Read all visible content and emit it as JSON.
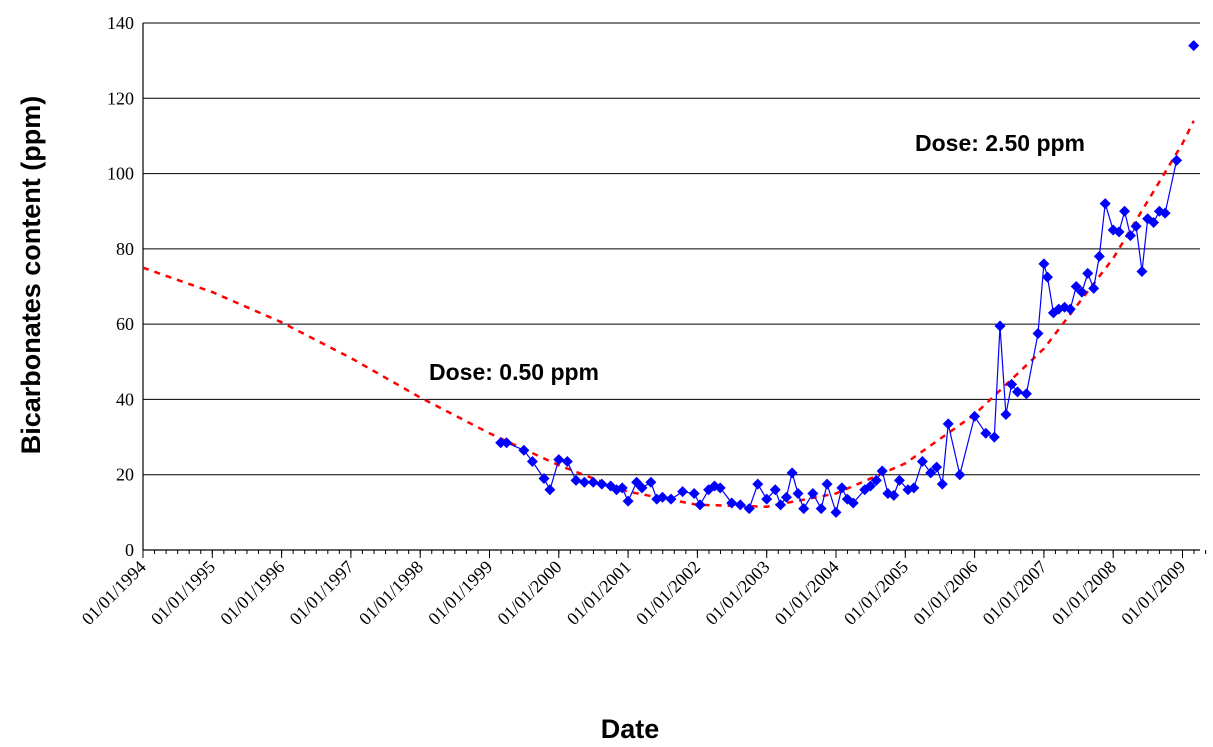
{
  "chart_data": {
    "type": "scatter",
    "title": "",
    "xlabel": "Date",
    "ylabel": "Bicarbonates content (ppm)",
    "ylim": [
      0,
      140
    ],
    "yticks": [
      0,
      20,
      40,
      60,
      80,
      100,
      120,
      140
    ],
    "xlim": [
      "1994-01-01",
      "2009-06-01"
    ],
    "xtick_labels": [
      "01/01/1994",
      "01/01/1995",
      "01/01/1996",
      "01/01/1997",
      "01/01/1998",
      "01/01/1999",
      "01/01/2000",
      "01/01/2001",
      "01/01/2002",
      "01/01/2003",
      "01/01/2004",
      "01/01/2005",
      "01/01/2006",
      "01/01/2007",
      "01/01/2008",
      "01/01/2009"
    ],
    "grid": {
      "horizontal": true,
      "vertical": false
    },
    "annotations": [
      "Dose: 0.50 ppm",
      "Dose: 2.50 ppm"
    ],
    "series": [
      {
        "kind": "measured",
        "color": "#0000ff",
        "marker": "diamond",
        "line": true,
        "points": [
          [
            "1999-03-01",
            28.5
          ],
          [
            "1999-04-01",
            28.5
          ],
          [
            "1999-07-01",
            26.5
          ],
          [
            "1999-08-15",
            23.5
          ],
          [
            "1999-10-15",
            19
          ],
          [
            "1999-11-15",
            16
          ],
          [
            "2000-01-01",
            24
          ],
          [
            "2000-02-15",
            23.5
          ],
          [
            "2000-04-01",
            18.5
          ],
          [
            "2000-05-15",
            18
          ],
          [
            "2000-07-01",
            18
          ],
          [
            "2000-08-15",
            17.5
          ],
          [
            "2000-10-01",
            17
          ],
          [
            "2000-11-01",
            16
          ],
          [
            "2000-12-01",
            16.5
          ],
          [
            "2001-01-01",
            13
          ],
          [
            "2001-02-15",
            18
          ],
          [
            "2001-03-15",
            16.5
          ],
          [
            "2001-05-01",
            18
          ],
          [
            "2001-06-01",
            13.5
          ],
          [
            "2001-07-01",
            14
          ],
          [
            "2001-08-15",
            13.5
          ],
          [
            "2001-10-15",
            15.5
          ],
          [
            "2001-12-15",
            15
          ],
          [
            "2002-01-15",
            12
          ],
          [
            "2002-03-01",
            16
          ],
          [
            "2002-04-01",
            17
          ],
          [
            "2002-05-01",
            16.5
          ],
          [
            "2002-07-01",
            12.5
          ],
          [
            "2002-08-15",
            12
          ],
          [
            "2002-10-01",
            11
          ],
          [
            "2002-11-15",
            17.5
          ],
          [
            "2003-01-01",
            13.5
          ],
          [
            "2003-02-15",
            16
          ],
          [
            "2003-03-15",
            12
          ],
          [
            "2003-04-15",
            14
          ],
          [
            "2003-05-15",
            20.5
          ],
          [
            "2003-06-15",
            15
          ],
          [
            "2003-07-15",
            11
          ],
          [
            "2003-09-01",
            15
          ],
          [
            "2003-10-15",
            11
          ],
          [
            "2003-11-15",
            17.5
          ],
          [
            "2004-01-01",
            10
          ],
          [
            "2004-02-01",
            16.5
          ],
          [
            "2004-03-01",
            13.5
          ],
          [
            "2004-04-01",
            12.5
          ],
          [
            "2004-06-01",
            16
          ],
          [
            "2004-07-01",
            17
          ],
          [
            "2004-08-01",
            18.5
          ],
          [
            "2004-09-01",
            21
          ],
          [
            "2004-10-01",
            15
          ],
          [
            "2004-11-01",
            14.5
          ],
          [
            "2004-12-01",
            18.5
          ],
          [
            "2005-01-15",
            16
          ],
          [
            "2005-02-15",
            16.5
          ],
          [
            "2005-04-01",
            23.5
          ],
          [
            "2005-05-15",
            20.5
          ],
          [
            "2005-06-15",
            22
          ],
          [
            "2005-07-15",
            17.5
          ],
          [
            "2005-08-15",
            33.5
          ],
          [
            "2005-10-15",
            20
          ],
          [
            "2006-01-01",
            35.5
          ],
          [
            "2006-03-01",
            31
          ],
          [
            "2006-04-15",
            30
          ],
          [
            "2006-05-15",
            59.5
          ],
          [
            "2006-06-15",
            36
          ],
          [
            "2006-07-15",
            44
          ],
          [
            "2006-08-15",
            42
          ],
          [
            "2006-10-01",
            41.5
          ],
          [
            "2006-12-01",
            57.5
          ],
          [
            "2007-01-01",
            76
          ],
          [
            "2007-01-20",
            72.5
          ],
          [
            "2007-02-20",
            63
          ],
          [
            "2007-03-20",
            64
          ],
          [
            "2007-04-20",
            64.5
          ],
          [
            "2007-05-20",
            64
          ],
          [
            "2007-06-20",
            70
          ],
          [
            "2007-07-20",
            68.5
          ],
          [
            "2007-08-20",
            73.5
          ],
          [
            "2007-09-20",
            69.5
          ],
          [
            "2007-10-20",
            78
          ],
          [
            "2007-11-20",
            92
          ],
          [
            "2008-01-01",
            85
          ],
          [
            "2008-02-01",
            84.5
          ],
          [
            "2008-03-01",
            90
          ],
          [
            "2008-04-01",
            83.5
          ],
          [
            "2008-05-01",
            86
          ],
          [
            "2008-06-01",
            74
          ],
          [
            "2008-07-01",
            88
          ],
          [
            "2008-08-01",
            87
          ],
          [
            "2008-09-01",
            90
          ],
          [
            "2008-10-01",
            89.5
          ],
          [
            "2008-12-01",
            103.5
          ],
          [
            "2009-03-01",
            134
          ]
        ]
      },
      {
        "kind": "trend",
        "color": "#ff0000",
        "style": "dashed",
        "points": [
          [
            "1994-01-01",
            75
          ],
          [
            "1995-01-01",
            68.5
          ],
          [
            "1996-01-01",
            60.5
          ],
          [
            "1997-01-01",
            51
          ],
          [
            "1998-01-01",
            40.5
          ],
          [
            "1999-01-01",
            31
          ],
          [
            "2000-01-01",
            22.5
          ],
          [
            "2001-01-01",
            15.5
          ],
          [
            "2002-01-01",
            12
          ],
          [
            "2003-01-01",
            11.5
          ],
          [
            "2004-01-01",
            15
          ],
          [
            "2005-01-01",
            23
          ],
          [
            "2006-01-01",
            36
          ],
          [
            "2007-01-01",
            53.5
          ],
          [
            "2008-01-01",
            77.5
          ],
          [
            "2009-01-01",
            108
          ],
          [
            "2009-03-01",
            114
          ]
        ]
      }
    ]
  }
}
